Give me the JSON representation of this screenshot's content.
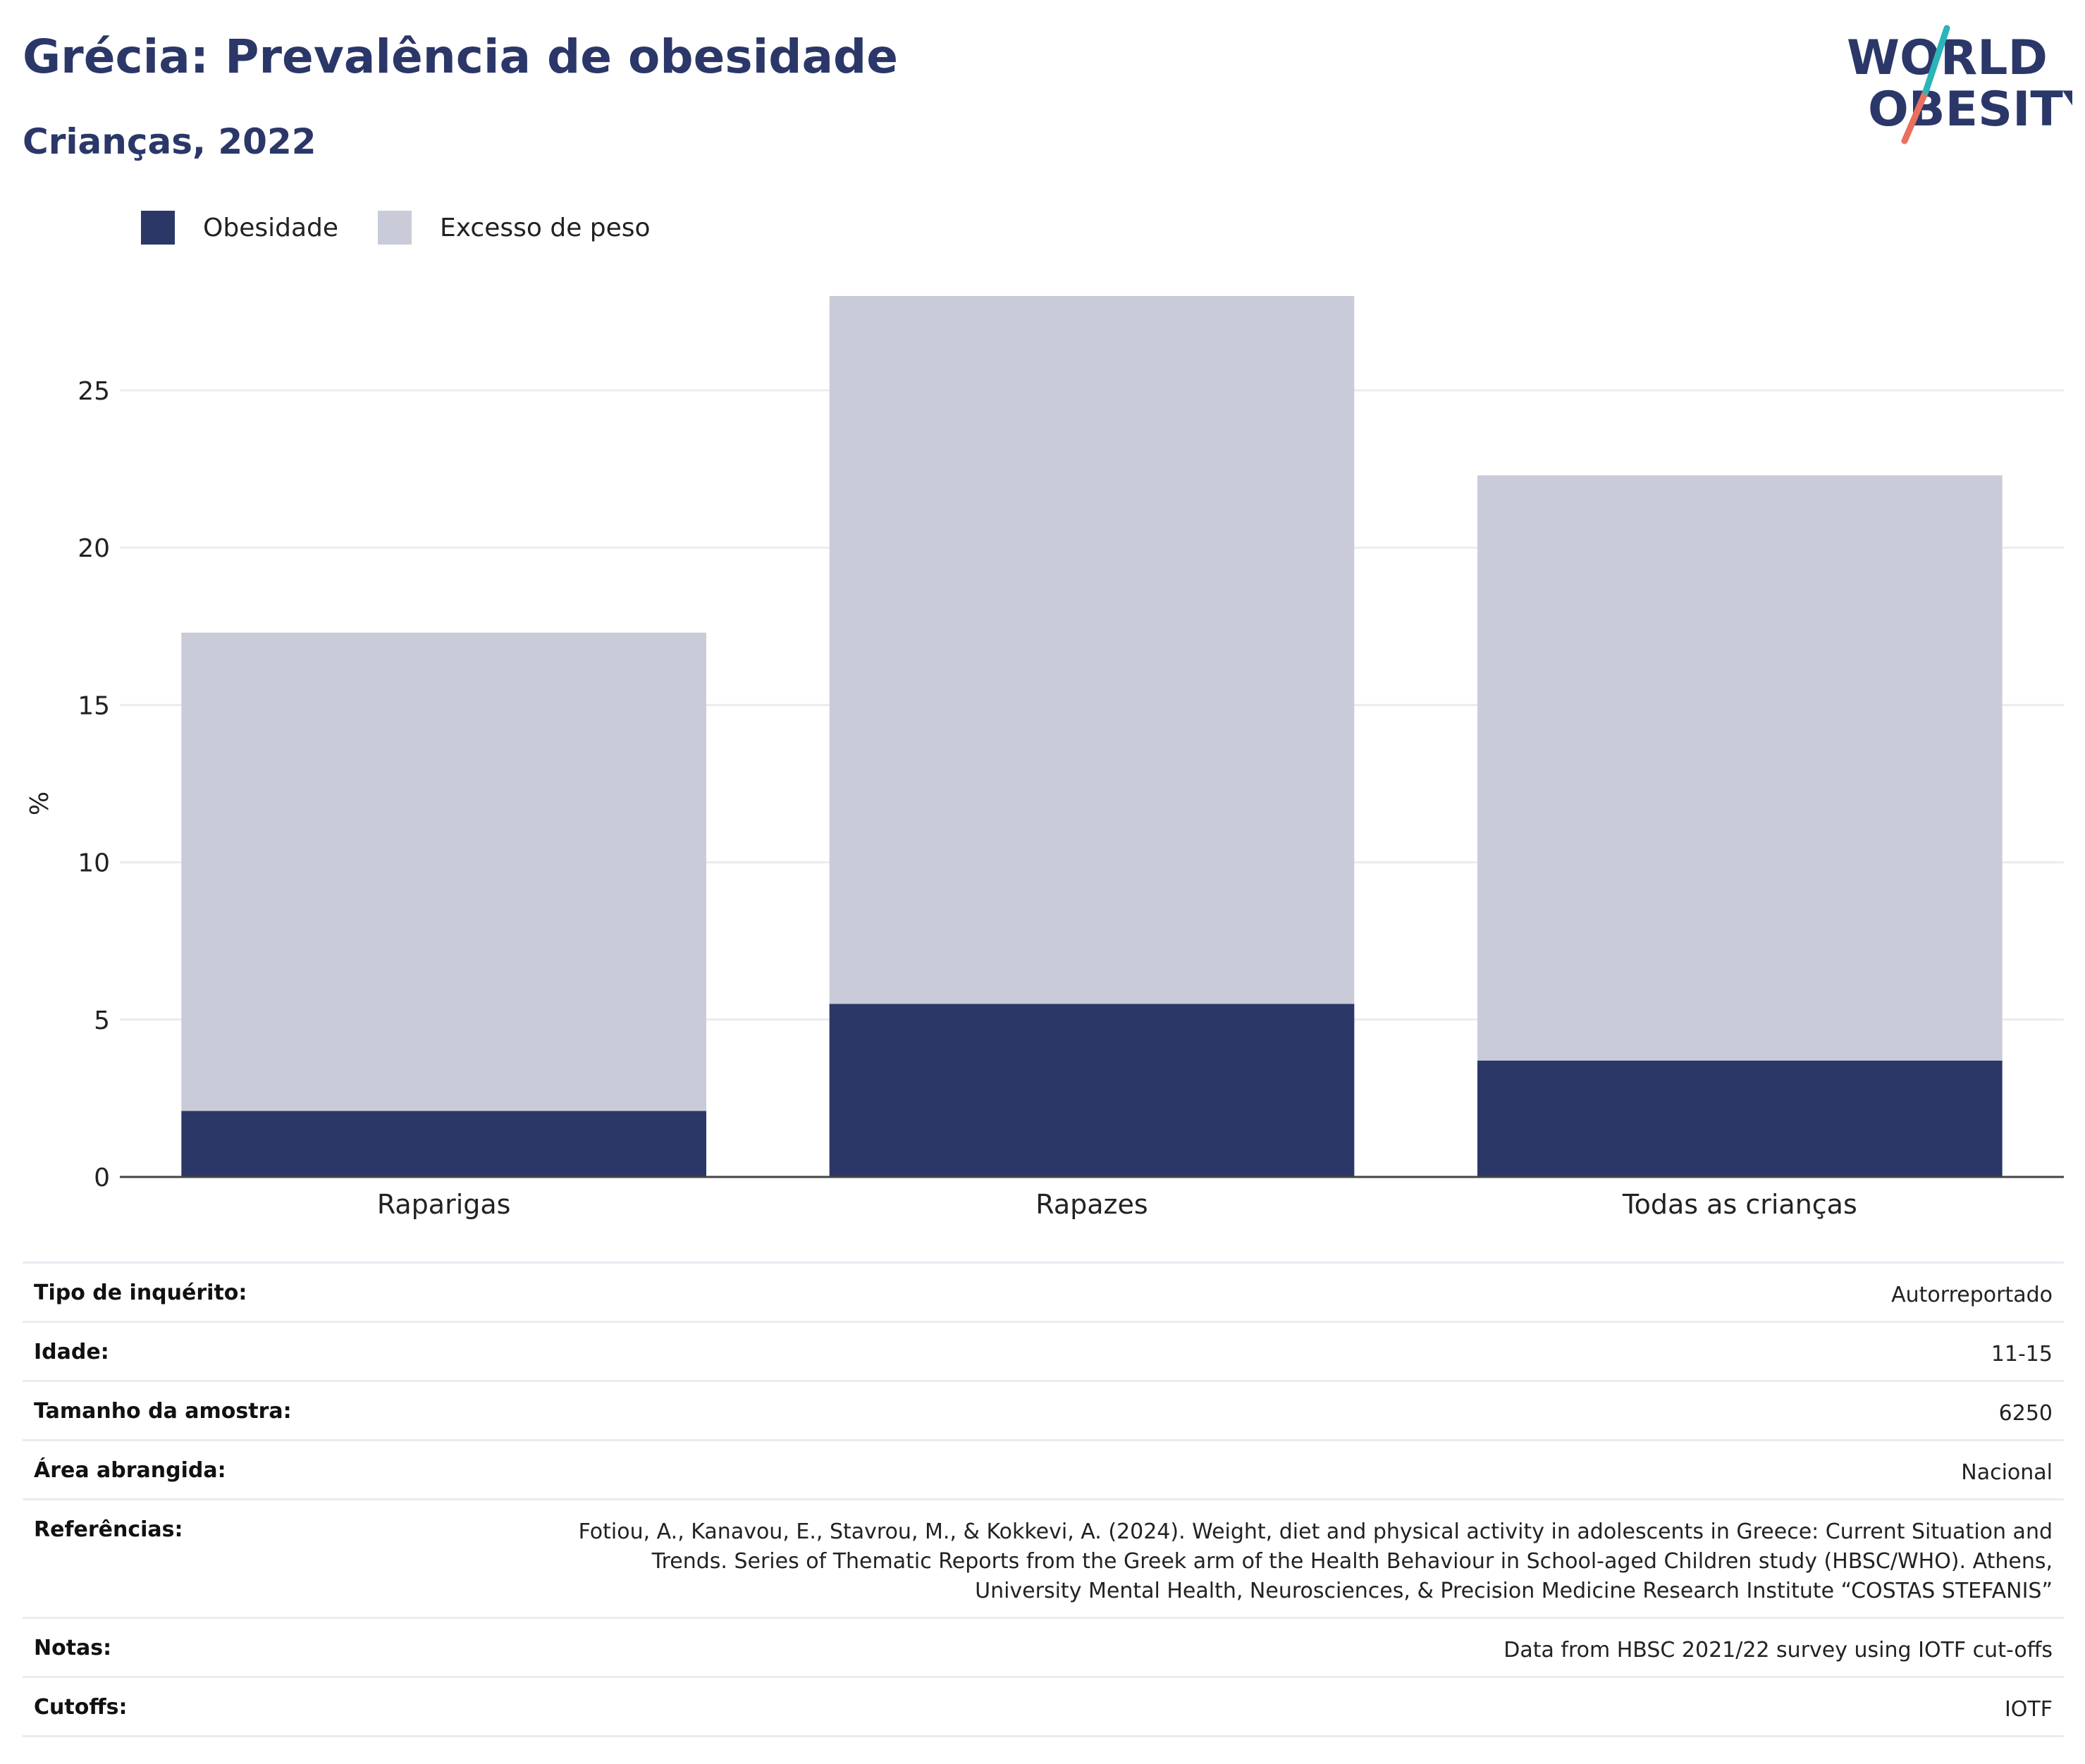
{
  "header": {
    "title": "Grécia: Prevalência de obesidade",
    "subtitle": "Crianças, 2022",
    "logo_line1": "WORLD",
    "logo_line2": "OBESITY"
  },
  "legend": [
    {
      "label": "Obesidade",
      "color": "#2b3766"
    },
    {
      "label": "Excesso de peso",
      "color": "#c9ccd8"
    }
  ],
  "colors": {
    "accent": "#2b3768",
    "logo_teal": "#2bb5b8",
    "logo_coral": "#e8705f",
    "gridline": "#eaecf2"
  },
  "chart_data": {
    "type": "bar",
    "stacked": true,
    "categories": [
      "Raparigas",
      "Rapazes",
      "Todas as crianças"
    ],
    "series": [
      {
        "name": "Obesidade",
        "values": [
          2.1,
          5.5,
          3.7
        ]
      },
      {
        "name": "Excesso de peso",
        "values": [
          15.2,
          22.5,
          18.6
        ]
      }
    ],
    "ylabel": "%",
    "ylim": [
      0,
      28
    ],
    "yticks": [
      "0",
      "5",
      "10",
      "15",
      "20",
      "25"
    ],
    "grid": true,
    "legend_position": "top-left"
  },
  "meta": [
    {
      "label": "Tipo de inquérito:",
      "value": "Autorreportado"
    },
    {
      "label": "Idade:",
      "value": "11-15"
    },
    {
      "label": "Tamanho da amostra:",
      "value": "6250"
    },
    {
      "label": "Área abrangida:",
      "value": "Nacional"
    },
    {
      "label": "Referências:",
      "value": "Fotiou, A., Kanavou, E., Stavrou, M., & Kokkevi, A. (2024). Weight, diet and physical activity in adolescents in Greece: Current Situation and Trends. Series of Thematic Reports from the Greek arm of the Health Behaviour in School-aged Children study (HBSC/WHO). Athens, University Mental Health, Neurosciences, & Precision Medicine Research Institute “COSTAS STEFANIS”"
    },
    {
      "label": "Notas:",
      "value": "Data from HBSC 2021/22 survey using IOTF cut-offs"
    },
    {
      "label": "Cutoffs:",
      "value": "IOTF"
    }
  ]
}
